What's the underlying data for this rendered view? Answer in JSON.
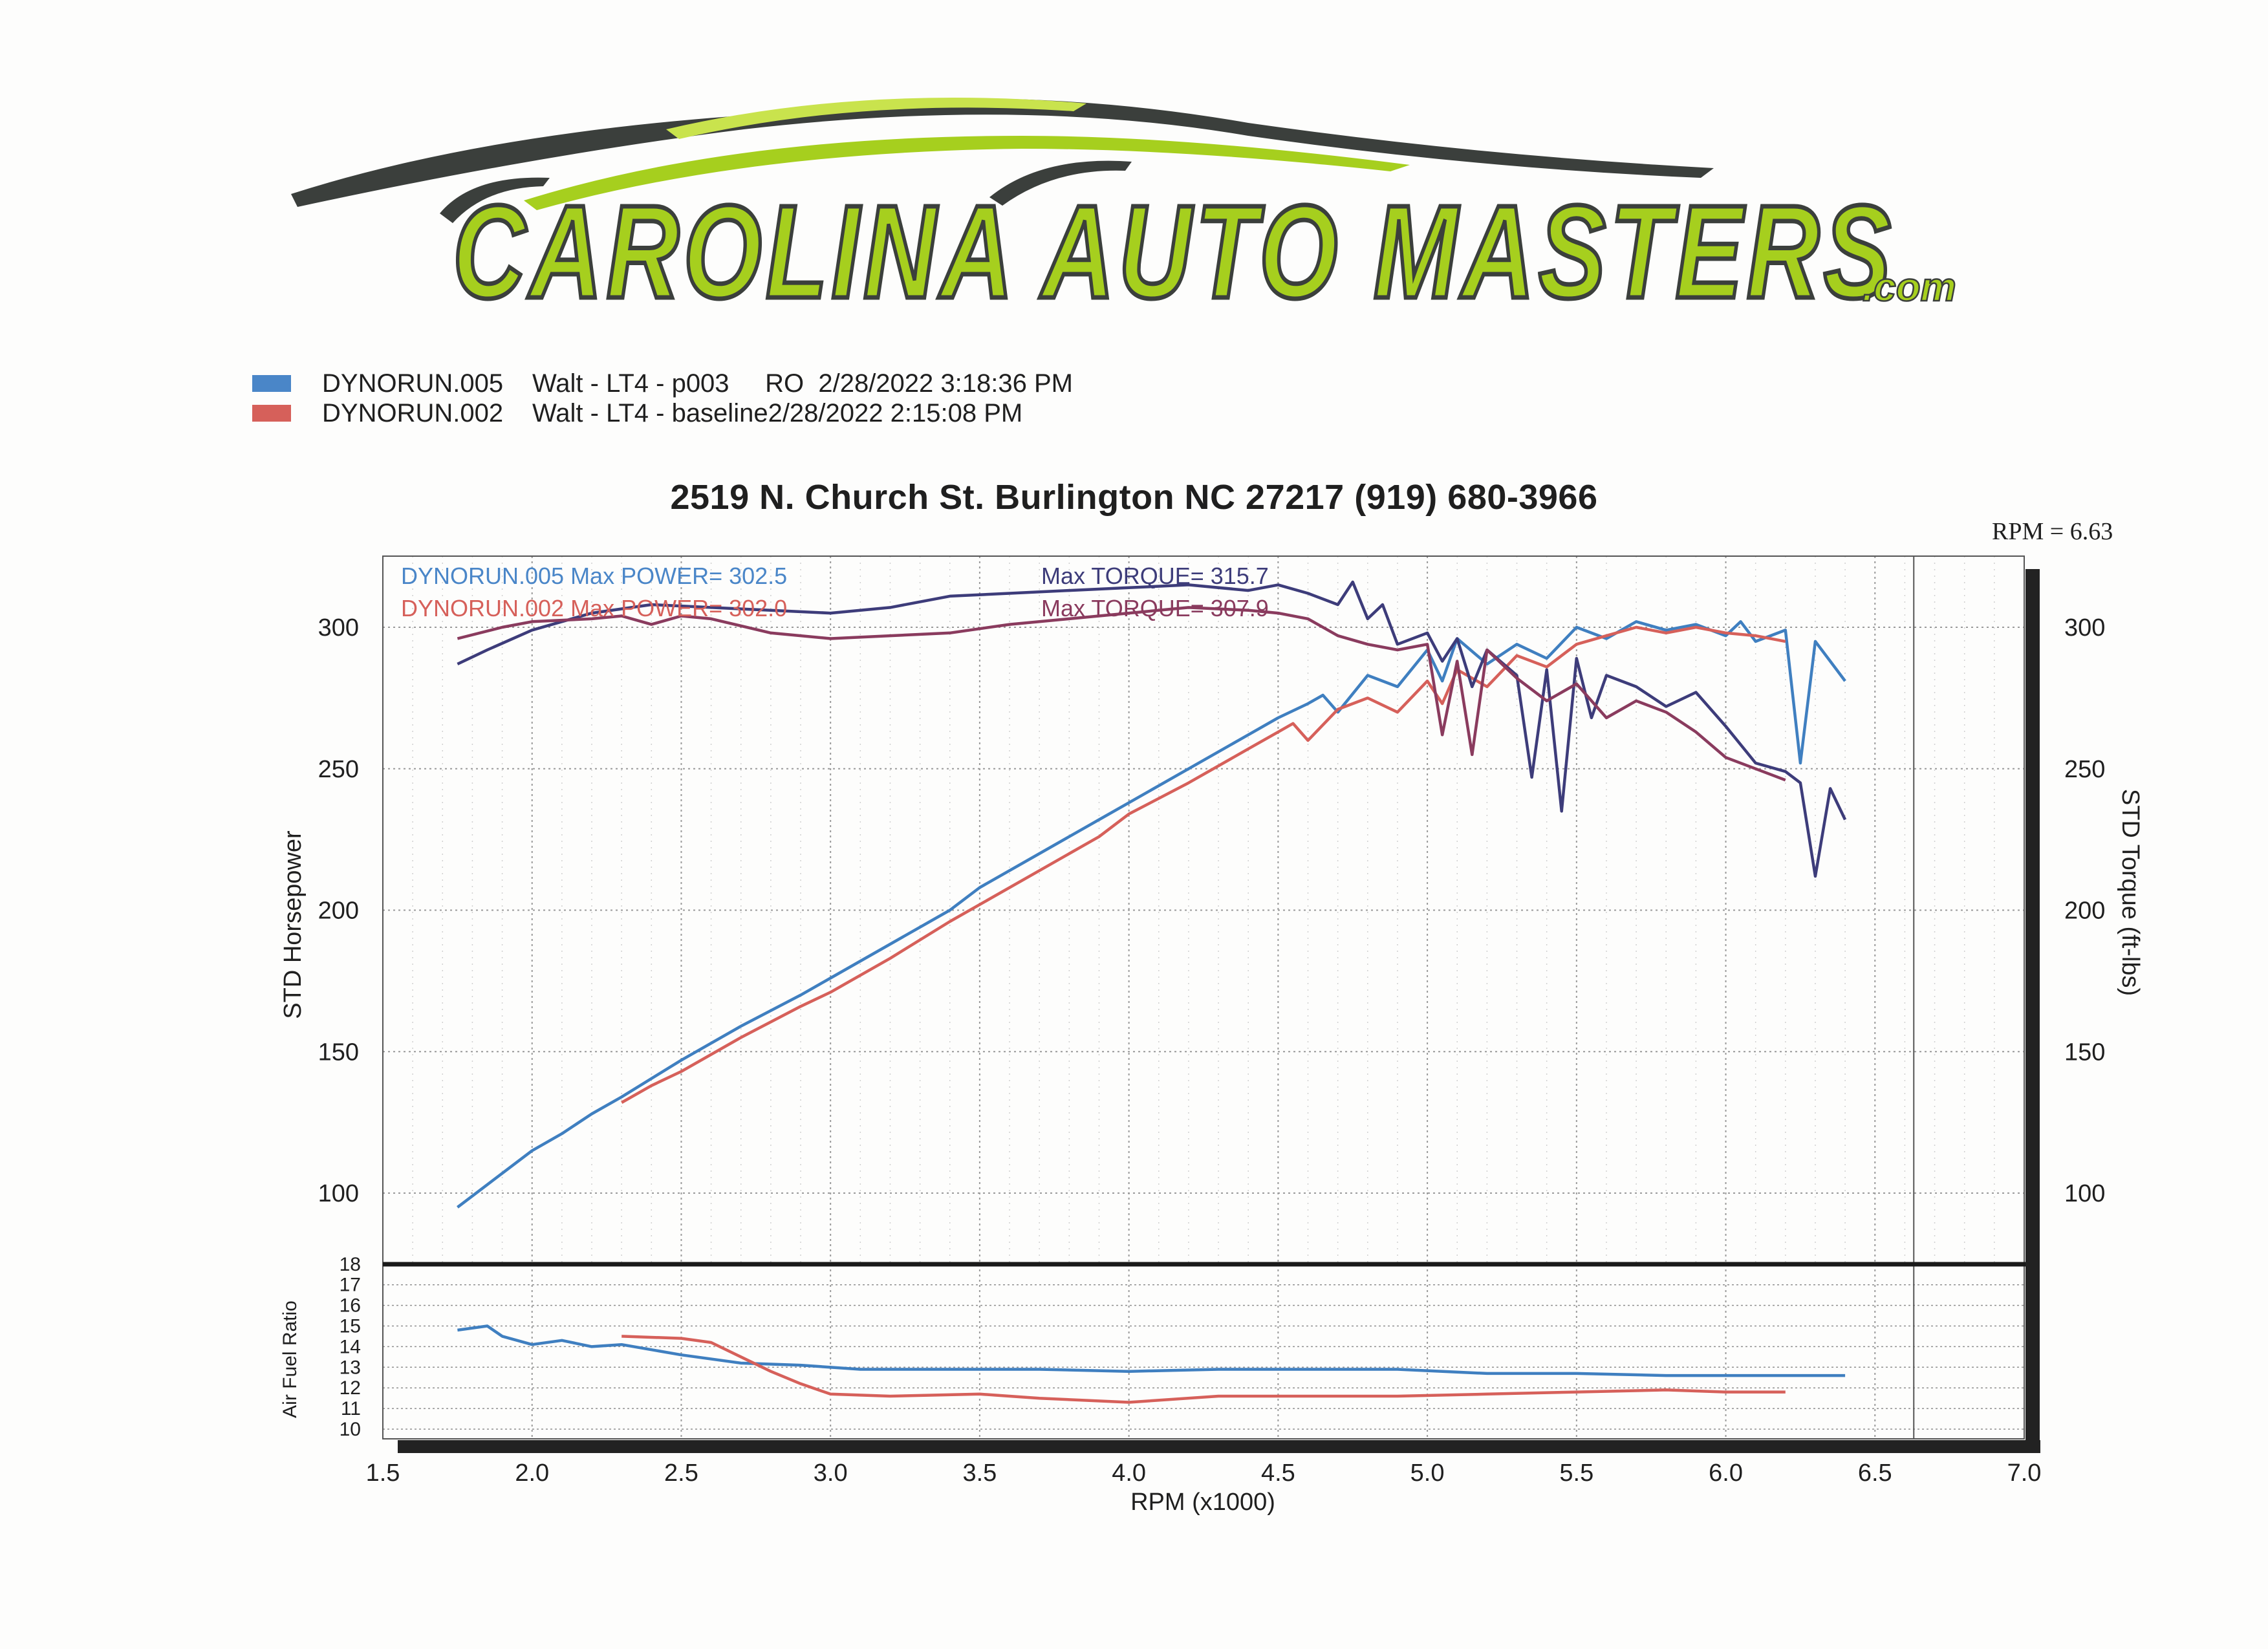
{
  "logo": {
    "text": "CAROLINA AUTO MASTERS",
    "suffix": ".com",
    "colors": {
      "green": "#a6cf1e",
      "dark": "#3b3f3c"
    }
  },
  "legend": [
    {
      "run": "DYNORUN.005",
      "desc": "Walt - LT4 - p003     RO  2/28/2022 3:18:36 PM",
      "color": "#4a86c8"
    },
    {
      "run": "DYNORUN.002",
      "desc": "Walt - LT4 - baseline2/28/2022 2:15:08 PM",
      "color": "#d6605a"
    }
  ],
  "header": {
    "address": "2519 N. Church St. Burlington NC 27217  (919) 680-3966",
    "rpm_readout": "RPM = 6.63"
  },
  "chart_data": [
    {
      "type": "line",
      "title": "",
      "xlabel": "RPM (x1000)",
      "ylabel": "STD Horsepower",
      "y2label": "STD Torque (ft-lbs)",
      "xlim": [
        1.5,
        7.0
      ],
      "ylim": [
        75,
        325
      ],
      "xticks": [
        "1.5",
        "2.0",
        "2.5",
        "3.0",
        "3.5",
        "4.0",
        "4.5",
        "5.0",
        "5.5",
        "6.0",
        "6.5",
        "7.0"
      ],
      "yticks": [
        "100",
        "150",
        "200",
        "250",
        "300"
      ],
      "cursor_rpm": 6.63,
      "grid": true,
      "annotations": [
        {
          "text": "DYNORUN.005  Max POWER= 302.5",
          "color": "#4a86c8"
        },
        {
          "text": "DYNORUN.002  Max POWER= 302.0",
          "color": "#d6605a"
        },
        {
          "text": "Max TORQUE= 315.7",
          "color": "#3d3c7a"
        },
        {
          "text": "Max TORQUE= 307.9",
          "color": "#8a3b5e"
        }
      ],
      "series": [
        {
          "name": "DYNORUN.005",
          "kind": "power",
          "color": "#3f7fc0",
          "x": [
            1.75,
            1.85,
            2.0,
            2.1,
            2.2,
            2.3,
            2.5,
            2.7,
            2.9,
            3.0,
            3.2,
            3.4,
            3.5,
            3.7,
            3.9,
            4.0,
            4.2,
            4.4,
            4.5,
            4.6,
            4.65,
            4.7,
            4.8,
            4.9,
            5.0,
            5.05,
            5.1,
            5.2,
            5.3,
            5.4,
            5.5,
            5.6,
            5.7,
            5.8,
            5.9,
            6.0,
            6.05,
            6.1,
            6.2,
            6.25,
            6.3,
            6.35,
            6.4
          ],
          "values": [
            95,
            103,
            115,
            121,
            128,
            134,
            147,
            159,
            170,
            176,
            188,
            200,
            208,
            220,
            232,
            238,
            250,
            262,
            268,
            273,
            276,
            270,
            283,
            279,
            292,
            281,
            296,
            287,
            294,
            289,
            300,
            296,
            302,
            299,
            301,
            297,
            302,
            295,
            299,
            252,
            295,
            288,
            281
          ]
        },
        {
          "name": "DYNORUN.002",
          "kind": "power",
          "color": "#d6605a",
          "x": [
            2.3,
            2.4,
            2.5,
            2.7,
            2.9,
            3.0,
            3.2,
            3.4,
            3.5,
            3.7,
            3.9,
            4.0,
            4.2,
            4.4,
            4.5,
            4.55,
            4.6,
            4.7,
            4.8,
            4.9,
            5.0,
            5.05,
            5.1,
            5.2,
            5.3,
            5.4,
            5.5,
            5.6,
            5.7,
            5.8,
            5.9,
            6.0,
            6.1,
            6.2
          ],
          "values": [
            132,
            138,
            143,
            155,
            166,
            171,
            183,
            196,
            202,
            214,
            226,
            234,
            245,
            257,
            263,
            266,
            260,
            271,
            275,
            270,
            281,
            273,
            285,
            279,
            290,
            286,
            294,
            297,
            300,
            298,
            300,
            298,
            297,
            295
          ]
        },
        {
          "name": "DYNORUN.005",
          "kind": "torque",
          "color": "#3d3c7a",
          "x": [
            1.75,
            1.85,
            2.0,
            2.2,
            2.4,
            2.6,
            2.8,
            3.0,
            3.2,
            3.4,
            3.6,
            3.8,
            4.0,
            4.2,
            4.4,
            4.5,
            4.6,
            4.7,
            4.75,
            4.8,
            4.85,
            4.9,
            5.0,
            5.05,
            5.1,
            5.15,
            5.2,
            5.3,
            5.35,
            5.4,
            5.45,
            5.5,
            5.55,
            5.6,
            5.7,
            5.8,
            5.9,
            6.0,
            6.1,
            6.2,
            6.25,
            6.3,
            6.35,
            6.4
          ],
          "values": [
            287,
            292,
            299,
            305,
            308,
            307,
            306,
            305,
            307,
            311,
            312,
            313,
            314,
            315,
            313,
            315,
            312,
            308,
            316,
            303,
            308,
            294,
            298,
            288,
            296,
            279,
            292,
            283,
            247,
            285,
            235,
            289,
            268,
            283,
            279,
            272,
            277,
            265,
            252,
            249,
            245,
            212,
            243,
            232
          ]
        },
        {
          "name": "DYNORUN.002",
          "kind": "torque",
          "color": "#8a3b5e",
          "x": [
            1.75,
            1.9,
            2.0,
            2.2,
            2.3,
            2.4,
            2.5,
            2.6,
            2.8,
            3.0,
            3.2,
            3.4,
            3.6,
            3.8,
            4.0,
            4.2,
            4.4,
            4.5,
            4.6,
            4.7,
            4.8,
            4.9,
            5.0,
            5.05,
            5.1,
            5.15,
            5.2,
            5.3,
            5.4,
            5.5,
            5.6,
            5.7,
            5.8,
            5.9,
            6.0,
            6.1,
            6.2
          ],
          "values": [
            296,
            300,
            302,
            303,
            304,
            301,
            304,
            303,
            298,
            296,
            297,
            298,
            301,
            303,
            305,
            307,
            306,
            305,
            303,
            297,
            294,
            292,
            294,
            262,
            288,
            255,
            292,
            282,
            274,
            280,
            268,
            274,
            270,
            263,
            254,
            250,
            246
          ]
        }
      ]
    },
    {
      "type": "line",
      "ylabel": "Air Fuel Ratio",
      "ylim": [
        10,
        18
      ],
      "yticks": [
        "10",
        "11",
        "12",
        "13",
        "14",
        "15",
        "16",
        "17",
        "18"
      ],
      "series": [
        {
          "name": "DYNORUN.005",
          "color": "#3f7fc0",
          "x": [
            1.75,
            1.85,
            1.9,
            2.0,
            2.1,
            2.2,
            2.3,
            2.5,
            2.7,
            2.9,
            3.1,
            3.4,
            3.7,
            4.0,
            4.3,
            4.6,
            4.9,
            5.2,
            5.5,
            5.8,
            6.1,
            6.4
          ],
          "values": [
            14.8,
            15.0,
            14.5,
            14.1,
            14.3,
            14.0,
            14.1,
            13.6,
            13.2,
            13.1,
            12.9,
            12.9,
            12.9,
            12.8,
            12.9,
            12.9,
            12.9,
            12.7,
            12.7,
            12.6,
            12.6,
            12.6
          ]
        },
        {
          "name": "DYNORUN.002",
          "color": "#d6605a",
          "x": [
            2.3,
            2.5,
            2.6,
            2.7,
            2.8,
            2.9,
            3.0,
            3.2,
            3.5,
            3.7,
            4.0,
            4.3,
            4.6,
            4.9,
            5.2,
            5.5,
            5.8,
            6.0,
            6.2
          ],
          "values": [
            14.5,
            14.4,
            14.2,
            13.5,
            12.8,
            12.2,
            11.7,
            11.6,
            11.7,
            11.5,
            11.3,
            11.6,
            11.6,
            11.6,
            11.7,
            11.8,
            11.9,
            11.8,
            11.8
          ]
        }
      ]
    }
  ]
}
